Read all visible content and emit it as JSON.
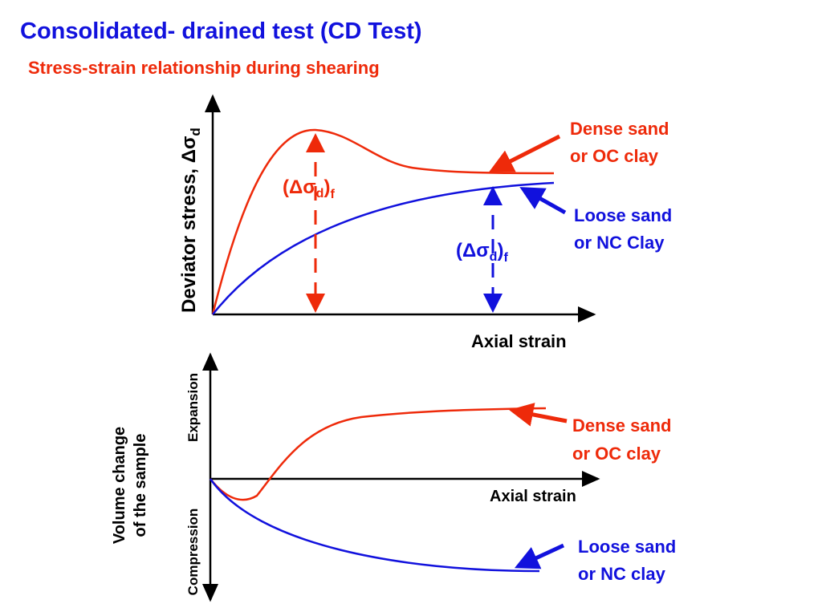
{
  "header": {
    "title": "Consolidated- drained test (CD Test)",
    "subtitle": "Stress-strain relationship during shearing"
  },
  "top_plot": {
    "y_axis_label": {
      "text": "Deviator stress, Δσ",
      "sub": "d"
    },
    "x_axis_label": "Axial strain",
    "dense_peak_label": {
      "open": "(Δσ",
      "sub1": "d",
      "close": ")",
      "sub2": "f"
    },
    "loose_label": {
      "open": "(Δσ",
      "sub1": "d",
      "close": ")",
      "sub2": "f"
    },
    "dense_curve_label": [
      "Dense sand",
      "or OC clay"
    ],
    "loose_curve_label": [
      "Loose sand",
      "or NC Clay"
    ]
  },
  "bottom_plot": {
    "y_axis_label": [
      "Volume change",
      "of the sample"
    ],
    "expansion_label": "Expansion",
    "compression_label": "Compression",
    "x_axis_label": "Axial strain",
    "dense_curve_label": [
      "Dense sand",
      "or OC clay"
    ],
    "loose_curve_label": [
      "Loose sand",
      "or NC clay"
    ]
  }
}
